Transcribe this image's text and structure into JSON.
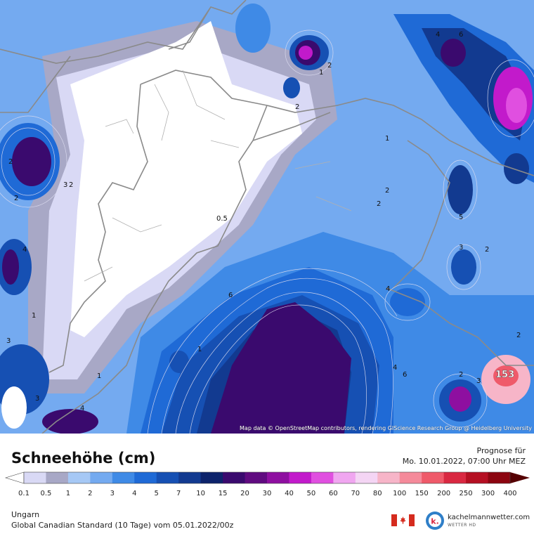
{
  "map": {
    "attribution": "Map data © OpenStreetMap contributors, rendering GIScience Research Group @ Heidelberg University",
    "contour_labels": [
      "1",
      "2",
      "2",
      "1",
      "2",
      "2",
      "2",
      "5",
      "3",
      "2",
      "4",
      "2",
      "4",
      "6",
      "3",
      "4",
      "1",
      "0.5",
      "6",
      "1",
      "2",
      "3",
      "4",
      "1",
      "2",
      "3",
      "3",
      "153",
      "4",
      "6",
      "2"
    ]
  },
  "legend": {
    "title": "Schneehöhe (cm)",
    "unit": "cm",
    "levels": [
      "0.1",
      "0.5",
      "1",
      "2",
      "3",
      "4",
      "5",
      "7",
      "10",
      "15",
      "20",
      "30",
      "40",
      "50",
      "60",
      "70",
      "80",
      "100",
      "150",
      "200",
      "250",
      "300",
      "400"
    ],
    "colors": [
      "#ffffff",
      "#d9d9f5",
      "#a8a8c6",
      "#a6c8f5",
      "#74aaf0",
      "#3f8ae6",
      "#1f6ad6",
      "#1650b3",
      "#123a90",
      "#0d236b",
      "#3a0a6e",
      "#600b80",
      "#8e0fa0",
      "#c21acb",
      "#e04fe0",
      "#f0a6f0",
      "#f4d5f4",
      "#f7b5c8",
      "#f58a9a",
      "#ef5a6a",
      "#d92841",
      "#b50f22",
      "#8c0510",
      "#550003"
    ]
  },
  "forecast": {
    "label": "Prognose für",
    "time": "Mo. 10.01.2022, 07:00 Uhr MEZ"
  },
  "footer": {
    "region": "Ungarn",
    "model": "Global Canadian Standard (10 Tage) vom 05.01.2022/00z",
    "brand_name": "kachelmannwetter.com",
    "brand_sub": "WETTER HD",
    "flag_icon": "canada-flag-icon",
    "logo_icon": "kachelmann-logo-icon"
  }
}
